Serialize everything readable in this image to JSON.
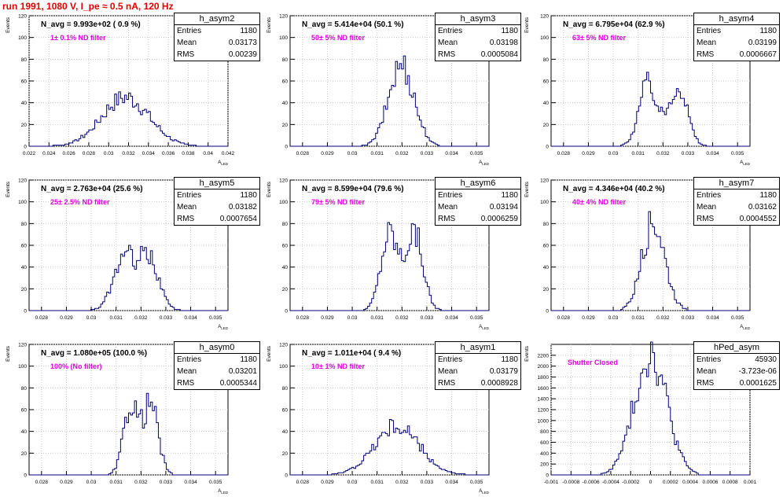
{
  "page": {
    "title": "run 1991,  1080 V, I_pe ≈ 0.5 nA, 120 Hz"
  },
  "colors": {
    "title": "#e00000",
    "filter_label": "#e000e0",
    "histogram_line": "#00007a",
    "grid": "#c8c8c8"
  },
  "chart_data": [
    {
      "type": "bar",
      "name": "h_asym2",
      "navg": "N_avg = 9.993e+02 ( 0.9 %)",
      "label": "1± 0.1% ND filter",
      "stats": {
        "entries": "1180",
        "mean": "0.03173",
        "rms": "0.00239"
      },
      "ylabel": "Events",
      "xlabel": "A_LED",
      "xlim": [
        0.022,
        0.042
      ],
      "ylim": [
        0,
        120
      ],
      "xticks": [
        "0.022",
        "0.024",
        "0.026",
        "0.028",
        "0.03",
        "0.032",
        "0.034",
        "0.036",
        "0.038",
        "0.04",
        "0.042"
      ],
      "yticks": [
        "0",
        "20",
        "40",
        "60",
        "80",
        "100",
        "120"
      ],
      "gen": {
        "mu": 0.03173,
        "sigma": 0.00239,
        "peaks": [
          0.0317
        ],
        "peak": 45
      }
    },
    {
      "type": "bar",
      "name": "h_asym3",
      "navg": "N_avg = 5.414e+04 (50.1 %)",
      "label": "50± 5% ND filter",
      "stats": {
        "entries": "1180",
        "mean": "0.03198",
        "rms": "0.0005084"
      },
      "ylabel": "Events",
      "xlabel": "A_LED",
      "xlim": [
        0.0275,
        0.0355
      ],
      "ylim": [
        0,
        120
      ],
      "xticks": [
        "0.028",
        "0.029",
        "0.03",
        "0.031",
        "0.032",
        "0.033",
        "0.034",
        "0.035"
      ],
      "yticks": [
        "0",
        "20",
        "40",
        "60",
        "80",
        "100",
        "120"
      ],
      "gen": {
        "mu": 0.03198,
        "sigma": 0.0005084,
        "peaks": [
          0.03198
        ],
        "peak": 75
      }
    },
    {
      "type": "bar",
      "name": "h_asym4",
      "navg": "N_avg = 6.795e+04 (62.9 %)",
      "label": "63± 5% ND filter",
      "stats": {
        "entries": "1180",
        "mean": "0.03199",
        "rms": "0.0006667"
      },
      "ylabel": "Events",
      "xlabel": "A_LED",
      "xlim": [
        0.0275,
        0.0355
      ],
      "ylim": [
        0,
        120
      ],
      "xticks": [
        "0.028",
        "0.029",
        "0.03",
        "0.031",
        "0.032",
        "0.033",
        "0.034",
        "0.035"
      ],
      "yticks": [
        "0",
        "20",
        "40",
        "60",
        "80",
        "100",
        "120"
      ],
      "gen": {
        "mu": 0.03199,
        "sigma": 0.0006667,
        "peaks": [
          0.0314,
          0.0326
        ],
        "peak": 60
      }
    },
    {
      "type": "bar",
      "name": "h_asym5",
      "navg": "N_avg = 2.763e+04 (25.6 %)",
      "label": "25± 2.5% ND filter",
      "stats": {
        "entries": "1180",
        "mean": "0.03182",
        "rms": "0.0007654"
      },
      "ylabel": "Events",
      "xlabel": "A_LED",
      "xlim": [
        0.0275,
        0.0355
      ],
      "ylim": [
        0,
        120
      ],
      "xticks": [
        "0.028",
        "0.029",
        "0.03",
        "0.031",
        "0.032",
        "0.033",
        "0.034",
        "0.035"
      ],
      "yticks": [
        "0",
        "20",
        "40",
        "60",
        "80",
        "100",
        "120"
      ],
      "gen": {
        "mu": 0.03182,
        "sigma": 0.0007654,
        "peaks": [
          0.0313,
          0.0323
        ],
        "peak": 50
      }
    },
    {
      "type": "bar",
      "name": "h_asym6",
      "navg": "N_avg = 8.599e+04 (79.6 %)",
      "label": "79± 5% ND filter",
      "stats": {
        "entries": "1180",
        "mean": "0.03194",
        "rms": "0.0006259"
      },
      "ylabel": "Events",
      "xlabel": "A_LED",
      "xlim": [
        0.0275,
        0.0355
      ],
      "ylim": [
        0,
        120
      ],
      "xticks": [
        "0.028",
        "0.029",
        "0.03",
        "0.031",
        "0.032",
        "0.033",
        "0.034",
        "0.035"
      ],
      "yticks": [
        "0",
        "20",
        "40",
        "60",
        "80",
        "100",
        "120"
      ],
      "gen": {
        "mu": 0.03194,
        "sigma": 0.0006259,
        "peaks": [
          0.0315,
          0.0325
        ],
        "peak": 75
      }
    },
    {
      "type": "bar",
      "name": "h_asym7",
      "navg": "N_avg = 4.346e+04 (40.2 %)",
      "label": "40± 4% ND filter",
      "stats": {
        "entries": "1180",
        "mean": "0.03162",
        "rms": "0.0004552"
      },
      "ylabel": "Events",
      "xlabel": "A_LED",
      "xlim": [
        0.0275,
        0.0355
      ],
      "ylim": [
        0,
        120
      ],
      "xticks": [
        "0.028",
        "0.029",
        "0.03",
        "0.031",
        "0.032",
        "0.033",
        "0.034",
        "0.035"
      ],
      "yticks": [
        "0",
        "20",
        "40",
        "60",
        "80",
        "100",
        "120"
      ],
      "gen": {
        "mu": 0.03162,
        "sigma": 0.0004552,
        "peaks": [
          0.03162
        ],
        "peak": 82
      }
    },
    {
      "type": "bar",
      "name": "h_asym0",
      "navg": "N_avg = 1.080e+05 (100.0 %)",
      "label": "100% (No filter)",
      "stats": {
        "entries": "1180",
        "mean": "0.03201",
        "rms": "0.0005344"
      },
      "ylabel": "Events",
      "xlabel": "A_LED",
      "xlim": [
        0.0275,
        0.0355
      ],
      "ylim": [
        0,
        120
      ],
      "xticks": [
        "0.028",
        "0.029",
        "0.03",
        "0.031",
        "0.032",
        "0.033",
        "0.034",
        "0.035"
      ],
      "yticks": [
        "0",
        "20",
        "40",
        "60",
        "80",
        "100",
        "120"
      ],
      "gen": {
        "mu": 0.03201,
        "sigma": 0.0005344,
        "peaks": [
          0.0316,
          0.0324
        ],
        "peak": 68
      }
    },
    {
      "type": "bar",
      "name": "h_asym1",
      "navg": "N_avg = 1.011e+04 ( 9.4 %)",
      "label": "10± 1% ND filter",
      "stats": {
        "entries": "1180",
        "mean": "0.03179",
        "rms": "0.0008928"
      },
      "ylabel": "Events",
      "xlabel": "A_LED",
      "xlim": [
        0.0275,
        0.0355
      ],
      "ylim": [
        0,
        120
      ],
      "xticks": [
        "0.028",
        "0.029",
        "0.03",
        "0.031",
        "0.032",
        "0.033",
        "0.034",
        "0.035"
      ],
      "yticks": [
        "0",
        "20",
        "40",
        "60",
        "80",
        "100",
        "120"
      ],
      "gen": {
        "mu": 0.03179,
        "sigma": 0.0008928,
        "peaks": [
          0.03179
        ],
        "peak": 45
      }
    },
    {
      "type": "bar",
      "name": "hPed_asym",
      "navg": "",
      "label": "Shutter Closed",
      "stats": {
        "entries": "45930",
        "mean": "-3.723e-06",
        "rms": "0.0001625"
      },
      "ylabel": "Events",
      "xlabel": "",
      "xlim": [
        -0.001,
        0.001
      ],
      "ylim": [
        0,
        2400
      ],
      "xticks": [
        "-0.001",
        "-0.0008",
        "-0.0006",
        "-0.0004",
        "-0.0002",
        "0",
        "0.0002",
        "0.0004",
        "0.0006",
        "0.0008",
        "0.001"
      ],
      "yticks": [
        "0",
        "200",
        "400",
        "600",
        "800",
        "1000",
        "1200",
        "1400",
        "1600",
        "1800",
        "2000",
        "2200"
      ],
      "gen": {
        "mu": -3.723e-06,
        "sigma": 0.0001625,
        "peaks": [
          0
        ],
        "peak": 2250
      }
    }
  ]
}
